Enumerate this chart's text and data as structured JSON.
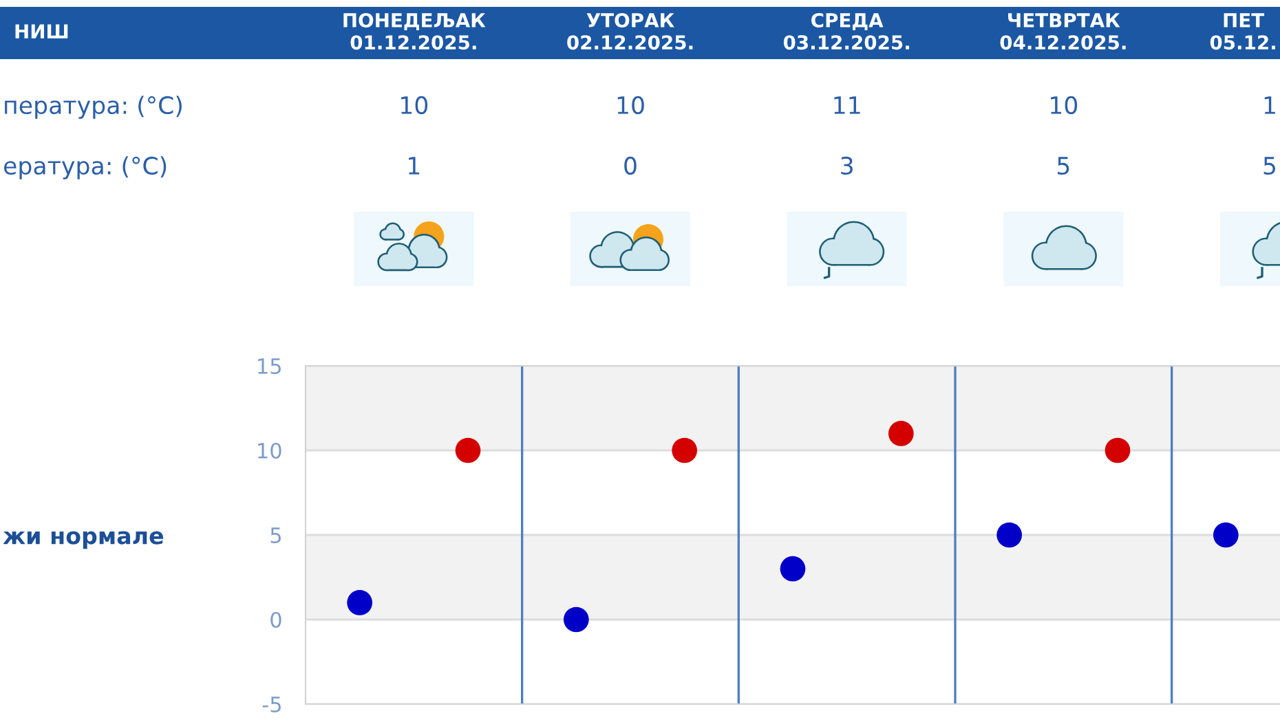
{
  "chart_data": [
    {
      "type": "other",
      "title": "НИШ",
      "categories": [
        "ПОНЕДЕЉАК\n01.12.2025.",
        "УТОРАК\n02.12.2025.",
        "СРЕДА\n03.12.2025.",
        "ЧЕТВРТАК\n04.12.2025.",
        "ПЕТ\n05.12."
      ],
      "series": [
        {
          "values": [
            10,
            10,
            11,
            10,
            null
          ],
          "value_labels": [
            "10",
            "10",
            "11",
            "10",
            "1"
          ]
        },
        {
          "values": [
            1,
            0,
            3,
            5,
            5
          ],
          "value_labels": [
            "1",
            "0",
            "3",
            "5",
            "5"
          ]
        }
      ],
      "annotations": [
        "пература: (°C)",
        "ература: (°C)"
      ]
    },
    {
      "type": "scatter",
      "categories": [
        null,
        null,
        null,
        null,
        null,
        null,
        null,
        null,
        null
      ],
      "series": [
        {
          "color": "#d40000",
          "values": [
            null,
            10,
            null,
            10,
            null,
            11,
            null,
            10,
            null
          ]
        },
        {
          "color": "#0000c8",
          "values": [
            1,
            null,
            0,
            null,
            3,
            null,
            5,
            null,
            5
          ]
        }
      ],
      "ylim": [
        -5,
        15
      ],
      "yticks": [
        -5,
        0,
        5,
        10,
        15
      ],
      "grid": true,
      "marker": "circle",
      "bands": [
        {
          "axis": "y",
          "from": 10,
          "to": 15,
          "color": "#f2f2f2"
        },
        {
          "axis": "y",
          "from": 0,
          "to": 5,
          "color": "#f2f2f2"
        }
      ],
      "annotations": [
        "жи нормале"
      ]
    }
  ]
}
